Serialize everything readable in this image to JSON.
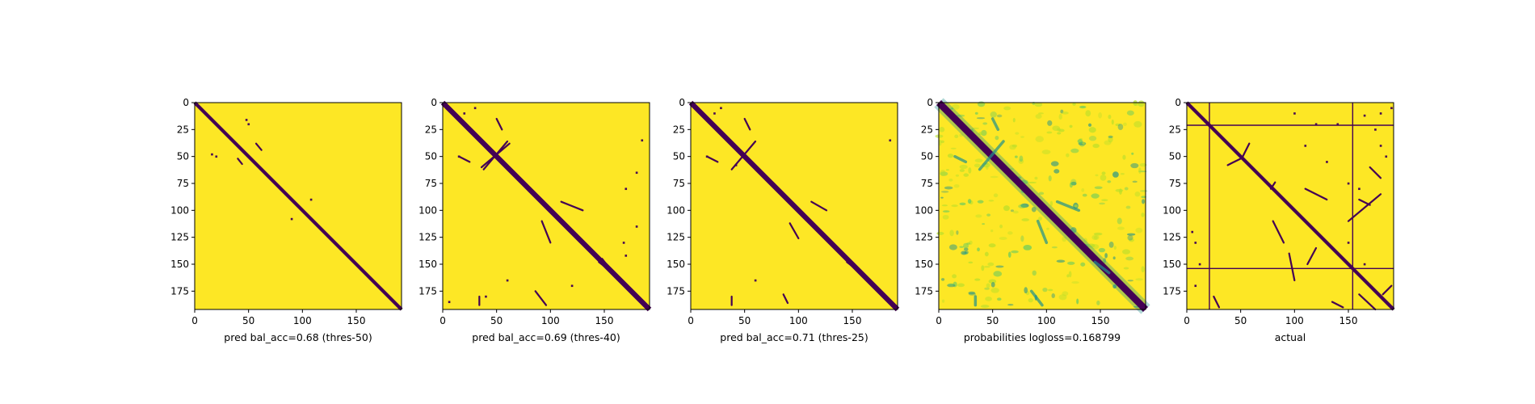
{
  "colors": {
    "background_yellow": "#fde725",
    "contact_purple": "#440154",
    "prob_teal": "#21918c",
    "prob_green": "#5ec962",
    "prob_light": "#b5de2b",
    "axis": "#000000"
  },
  "chart_data": [
    {
      "type": "heatmap",
      "xlabel": "pred bal_acc=0.68 (thres-50)",
      "matrix_size": 192,
      "xlim": [
        0,
        191
      ],
      "ylim": [
        191,
        0
      ],
      "xticks": [
        0,
        50,
        100,
        150
      ],
      "yticks": [
        0,
        25,
        50,
        75,
        100,
        125,
        150,
        175
      ],
      "xtick_labels": [
        "0",
        "50",
        "100",
        "150"
      ],
      "ytick_labels": [
        "0",
        "25",
        "50",
        "75",
        "100",
        "125",
        "150",
        "175"
      ],
      "diagonal_band": 2,
      "contact_segments": [
        {
          "from": [
            57,
            38
          ],
          "to": [
            62,
            44
          ]
        },
        {
          "from": [
            40,
            52
          ],
          "to": [
            44,
            57
          ]
        }
      ],
      "contact_points": [
        [
          16,
          48
        ],
        [
          48,
          16
        ],
        [
          90,
          108
        ],
        [
          108,
          90
        ],
        [
          20,
          50
        ],
        [
          50,
          20
        ]
      ],
      "horizontal_lines": [],
      "vertical_lines": []
    },
    {
      "type": "heatmap",
      "xlabel": "pred bal_acc=0.69 (thres-40)",
      "matrix_size": 192,
      "xlim": [
        0,
        191
      ],
      "ylim": [
        191,
        0
      ],
      "xticks": [
        0,
        50,
        100,
        150
      ],
      "yticks": [
        0,
        25,
        50,
        75,
        100,
        125,
        150,
        175
      ],
      "xtick_labels": [
        "0",
        "50",
        "100",
        "150"
      ],
      "ytick_labels": [
        "0",
        "25",
        "50",
        "75",
        "100",
        "125",
        "150",
        "175"
      ],
      "diagonal_band": 3,
      "contact_segments": [
        {
          "from": [
            38,
            62
          ],
          "to": [
            60,
            36
          ]
        },
        {
          "from": [
            36,
            60
          ],
          "to": [
            62,
            38
          ]
        },
        {
          "from": [
            50,
            15
          ],
          "to": [
            55,
            25
          ]
        },
        {
          "from": [
            15,
            50
          ],
          "to": [
            25,
            55
          ]
        },
        {
          "from": [
            110,
            92
          ],
          "to": [
            130,
            100
          ]
        },
        {
          "from": [
            92,
            110
          ],
          "to": [
            100,
            130
          ]
        },
        {
          "from": [
            145,
            148
          ],
          "to": [
            158,
            158
          ]
        },
        {
          "from": [
            148,
            145
          ],
          "to": [
            158,
            158
          ]
        },
        {
          "from": [
            86,
            175
          ],
          "to": [
            96,
            188
          ]
        },
        {
          "from": [
            34,
            180
          ],
          "to": [
            34,
            188
          ]
        }
      ],
      "contact_points": [
        [
          20,
          10
        ],
        [
          30,
          5
        ],
        [
          170,
          170
        ],
        [
          185,
          35
        ],
        [
          180,
          65
        ],
        [
          170,
          80
        ],
        [
          15,
          50
        ],
        [
          40,
          180
        ],
        [
          60,
          165
        ],
        [
          120,
          170
        ],
        [
          168,
          130
        ],
        [
          180,
          115
        ],
        [
          6,
          185
        ],
        [
          170,
          142
        ]
      ],
      "horizontal_lines": [],
      "vertical_lines": []
    },
    {
      "type": "heatmap",
      "xlabel": "pred bal_acc=0.71 (thres-25)",
      "matrix_size": 192,
      "xlim": [
        0,
        191
      ],
      "ylim": [
        191,
        0
      ],
      "xticks": [
        0,
        50,
        100,
        150
      ],
      "yticks": [
        0,
        25,
        50,
        75,
        100,
        125,
        150,
        175
      ],
      "xtick_labels": [
        "0",
        "50",
        "100",
        "150"
      ],
      "ytick_labels": [
        "0",
        "25",
        "50",
        "75",
        "100",
        "125",
        "150",
        "175"
      ],
      "diagonal_band": 3,
      "contact_segments": [
        {
          "from": [
            38,
            62
          ],
          "to": [
            60,
            36
          ]
        },
        {
          "from": [
            50,
            15
          ],
          "to": [
            55,
            25
          ]
        },
        {
          "from": [
            15,
            50
          ],
          "to": [
            25,
            55
          ]
        },
        {
          "from": [
            112,
            92
          ],
          "to": [
            126,
            100
          ]
        },
        {
          "from": [
            92,
            112
          ],
          "to": [
            100,
            126
          ]
        },
        {
          "from": [
            145,
            148
          ],
          "to": [
            158,
            158
          ]
        },
        {
          "from": [
            86,
            178
          ],
          "to": [
            90,
            186
          ]
        },
        {
          "from": [
            38,
            180
          ],
          "to": [
            38,
            188
          ]
        }
      ],
      "contact_points": [
        [
          22,
          10
        ],
        [
          28,
          5
        ],
        [
          170,
          170
        ],
        [
          185,
          35
        ],
        [
          15,
          50
        ],
        [
          42,
          58
        ],
        [
          60,
          165
        ]
      ],
      "horizontal_lines": [],
      "vertical_lines": []
    },
    {
      "type": "heatmap",
      "xlabel": "probabilities logloss=0.168799",
      "matrix_size": 192,
      "xlim": [
        0,
        191
      ],
      "ylim": [
        191,
        0
      ],
      "xticks": [
        0,
        50,
        100,
        150
      ],
      "yticks": [
        0,
        25,
        50,
        75,
        100,
        125,
        150,
        175
      ],
      "xtick_labels": [
        "0",
        "50",
        "100",
        "150"
      ],
      "ytick_labels": [
        "0",
        "25",
        "50",
        "75",
        "100",
        "125",
        "150",
        "175"
      ],
      "diagonal_band": 4,
      "probability_map": true,
      "contact_segments": [
        {
          "from": [
            38,
            62
          ],
          "to": [
            60,
            36
          ]
        },
        {
          "from": [
            50,
            15
          ],
          "to": [
            55,
            25
          ]
        },
        {
          "from": [
            15,
            50
          ],
          "to": [
            25,
            55
          ]
        },
        {
          "from": [
            110,
            92
          ],
          "to": [
            130,
            100
          ]
        },
        {
          "from": [
            92,
            110
          ],
          "to": [
            100,
            130
          ]
        },
        {
          "from": [
            145,
            148
          ],
          "to": [
            158,
            158
          ]
        },
        {
          "from": [
            86,
            175
          ],
          "to": [
            96,
            188
          ]
        },
        {
          "from": [
            34,
            180
          ],
          "to": [
            34,
            188
          ]
        }
      ],
      "contact_points": [],
      "horizontal_lines": [],
      "vertical_lines": []
    },
    {
      "type": "heatmap",
      "xlabel": "actual",
      "matrix_size": 192,
      "xlim": [
        0,
        191
      ],
      "ylim": [
        191,
        0
      ],
      "xticks": [
        0,
        50,
        100,
        150
      ],
      "yticks": [
        0,
        25,
        50,
        75,
        100,
        125,
        150,
        175
      ],
      "xtick_labels": [
        "0",
        "50",
        "100",
        "150"
      ],
      "ytick_labels": [
        "0",
        "25",
        "50",
        "75",
        "100",
        "125",
        "150",
        "175"
      ],
      "diagonal_band": 2,
      "contact_segments": [
        {
          "from": [
            58,
            38
          ],
          "to": [
            52,
            50
          ]
        },
        {
          "from": [
            38,
            58
          ],
          "to": [
            50,
            52
          ]
        },
        {
          "from": [
            78,
            80
          ],
          "to": [
            82,
            74
          ]
        },
        {
          "from": [
            110,
            80
          ],
          "to": [
            130,
            90
          ]
        },
        {
          "from": [
            80,
            110
          ],
          "to": [
            90,
            130
          ]
        },
        {
          "from": [
            95,
            140
          ],
          "to": [
            100,
            165
          ]
        },
        {
          "from": [
            170,
            60
          ],
          "to": [
            180,
            70
          ]
        },
        {
          "from": [
            135,
            185
          ],
          "to": [
            145,
            190
          ]
        },
        {
          "from": [
            150,
            110
          ],
          "to": [
            180,
            85
          ]
        },
        {
          "from": [
            120,
            135
          ],
          "to": [
            112,
            150
          ]
        },
        {
          "from": [
            160,
            178
          ],
          "to": [
            175,
            192
          ]
        },
        {
          "from": [
            182,
            178
          ],
          "to": [
            190,
            170
          ]
        },
        {
          "from": [
            25,
            180
          ],
          "to": [
            30,
            190
          ]
        },
        {
          "from": [
            160,
            90
          ],
          "to": [
            170,
            95
          ]
        }
      ],
      "contact_points": [
        [
          190,
          5
        ],
        [
          180,
          10
        ],
        [
          165,
          12
        ],
        [
          175,
          25
        ],
        [
          180,
          40
        ],
        [
          185,
          50
        ],
        [
          110,
          40
        ],
        [
          130,
          55
        ],
        [
          150,
          75
        ],
        [
          160,
          80
        ],
        [
          5,
          120
        ],
        [
          8,
          130
        ],
        [
          8,
          170
        ],
        [
          12,
          150
        ],
        [
          150,
          130
        ],
        [
          165,
          150
        ],
        [
          120,
          20
        ],
        [
          140,
          20
        ],
        [
          100,
          10
        ]
      ],
      "horizontal_lines": [
        21,
        154
      ],
      "vertical_lines": [
        21,
        154
      ]
    }
  ]
}
